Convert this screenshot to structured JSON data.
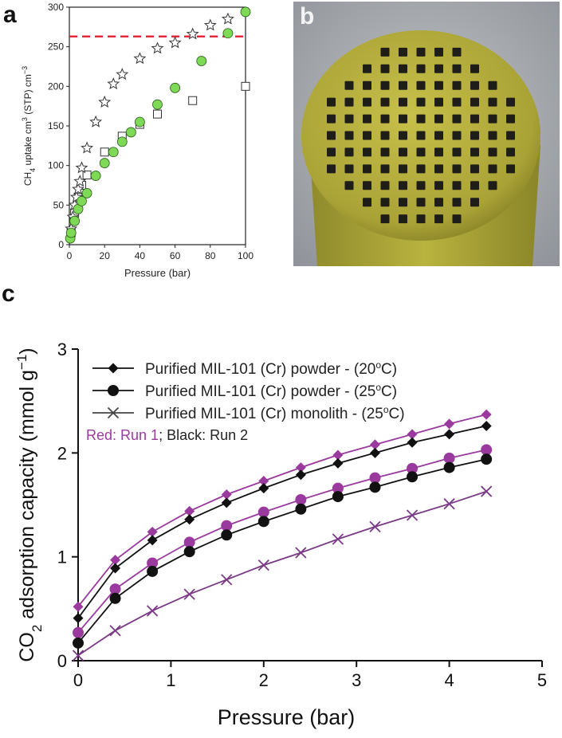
{
  "panels": {
    "a_letter": "a",
    "b_letter": "b",
    "c_letter": "c"
  },
  "chart_data": [
    {
      "type": "scatter",
      "panel": "a",
      "xlabel": "Pressure (bar)",
      "ylabel_parts": [
        "CH",
        "4",
        " uptake cm",
        "3",
        " (STP) cm",
        "−3"
      ],
      "xlim": [
        0,
        100
      ],
      "ylim": [
        0,
        300
      ],
      "xticks": [
        0,
        20,
        40,
        60,
        80,
        100
      ],
      "yticks": [
        0,
        50,
        100,
        150,
        200,
        250,
        300
      ],
      "reference_line": {
        "y": 263,
        "color": "#e8283a",
        "style": "dashed"
      },
      "series": [
        {
          "marker": "star",
          "color": "#ffffff",
          "x": [
            1,
            2,
            3,
            4,
            5,
            6,
            7,
            10,
            15,
            20,
            25,
            30,
            40,
            50,
            60,
            70,
            80,
            90
          ],
          "y": [
            20,
            35,
            50,
            60,
            70,
            80,
            97,
            122,
            155,
            180,
            203,
            215,
            235,
            248,
            255,
            266,
            277,
            285
          ]
        },
        {
          "marker": "circle",
          "color": "#7ed957",
          "x": [
            0.5,
            1,
            3,
            5,
            7,
            10,
            15,
            20,
            25,
            30,
            35,
            40,
            50,
            60,
            75,
            90,
            100
          ],
          "y": [
            8,
            15,
            30,
            45,
            55,
            65,
            87,
            103,
            117,
            130,
            142,
            155,
            177,
            198,
            232,
            267,
            294
          ]
        },
        {
          "marker": "square",
          "color": "#ffffff",
          "x": [
            1,
            3,
            5,
            7,
            10,
            20,
            30,
            40,
            50,
            70,
            100
          ],
          "y": [
            15,
            40,
            60,
            75,
            88,
            117,
            137,
            152,
            165,
            182,
            200
          ]
        }
      ]
    },
    {
      "type": "line",
      "panel": "c",
      "xlabel": "Pressure (bar)",
      "ylabel_parts": [
        "CO",
        "2",
        " adsorption capacity (mmol g",
        "−1",
        ")"
      ],
      "xlim": [
        0,
        5
      ],
      "ylim": [
        0,
        3
      ],
      "xticks": [
        0,
        1,
        2,
        3,
        4,
        5
      ],
      "yticks": [
        0,
        1,
        2,
        3
      ],
      "legend": {
        "placement": "top-left",
        "entries": [
          {
            "label": "Purified MIL-101 (Cr) powder - (20",
            "sup": "o",
            "tail": "C)",
            "marker": "diamond"
          },
          {
            "label": "Purified MIL-101 (Cr) powder - (25",
            "sup": "o",
            "tail": "C)",
            "marker": "circle"
          },
          {
            "label": "Purified MIL-101 (Cr) monolith - (25",
            "sup": "o",
            "tail": "C)",
            "marker": "x"
          }
        ],
        "note_red": "Red: Run 1",
        "note_black": "; Black: Run 2"
      },
      "x": [
        0,
        0.4,
        0.8,
        1.2,
        1.6,
        2.0,
        2.4,
        2.8,
        3.2,
        3.6,
        4.0,
        4.4
      ],
      "series": [
        {
          "name": "powder 20C Run 1",
          "marker": "diamond",
          "color": "#9b3a9e",
          "values": [
            0.52,
            0.97,
            1.24,
            1.44,
            1.6,
            1.73,
            1.86,
            1.98,
            2.08,
            2.18,
            2.28,
            2.37
          ]
        },
        {
          "name": "powder 20C Run 2",
          "marker": "diamond",
          "color": "#111111",
          "values": [
            0.41,
            0.89,
            1.16,
            1.36,
            1.52,
            1.66,
            1.79,
            1.9,
            2.0,
            2.1,
            2.18,
            2.26
          ]
        },
        {
          "name": "powder 25C Run 1",
          "marker": "circle",
          "color": "#9b3a9e",
          "values": [
            0.27,
            0.69,
            0.94,
            1.14,
            1.3,
            1.43,
            1.55,
            1.66,
            1.76,
            1.85,
            1.95,
            2.03
          ]
        },
        {
          "name": "powder 25C Run 2",
          "marker": "circle",
          "color": "#111111",
          "values": [
            0.17,
            0.6,
            0.86,
            1.05,
            1.21,
            1.34,
            1.46,
            1.58,
            1.67,
            1.77,
            1.86,
            1.94
          ]
        },
        {
          "name": "monolith 25C",
          "marker": "x",
          "color": "#7a3a86",
          "values": [
            0.05,
            0.29,
            0.48,
            0.64,
            0.78,
            0.92,
            1.04,
            1.17,
            1.29,
            1.4,
            1.51,
            1.63
          ]
        }
      ]
    }
  ]
}
